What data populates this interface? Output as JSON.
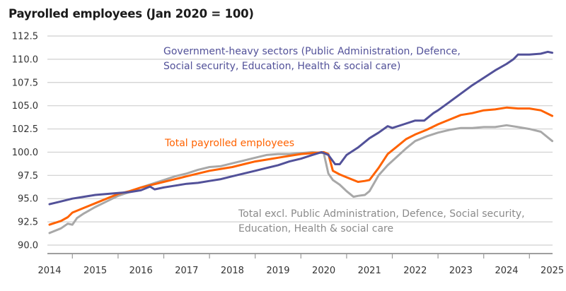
{
  "chart_data": {
    "type": "line",
    "title": "Payrolled employees (Jan 2020 = 100)",
    "xlabel": "",
    "ylabel": "",
    "ylim": [
      90.0,
      112.5
    ],
    "xlim": [
      2014.0,
      2025.0
    ],
    "yticks": [
      "90.0",
      "92.5",
      "95.0",
      "97.5",
      "100.0",
      "102.5",
      "105.0",
      "107.5",
      "110.0",
      "112.5"
    ],
    "xticks": [
      "2014",
      "2015",
      "2016",
      "2017",
      "2018",
      "2019",
      "2020",
      "2021",
      "2022",
      "2023",
      "2024",
      "2025"
    ],
    "grid": true,
    "legend": "inline annotations",
    "series": [
      {
        "name": "Government-heavy sectors (Public Administration, Defence, Social security, Education, Health & social care)",
        "color": "#525199",
        "x": [
          2014.0,
          2014.25,
          2014.5,
          2014.75,
          2015.0,
          2015.25,
          2015.5,
          2015.75,
          2016.0,
          2016.2,
          2016.3,
          2016.5,
          2016.75,
          2017.0,
          2017.25,
          2017.5,
          2017.75,
          2018.0,
          2018.25,
          2018.5,
          2018.75,
          2019.0,
          2019.25,
          2019.5,
          2019.75,
          2019.95,
          2020.1,
          2020.25,
          2020.35,
          2020.5,
          2020.75,
          2021.0,
          2021.2,
          2021.4,
          2021.5,
          2021.75,
          2022.0,
          2022.2,
          2022.4,
          2022.5,
          2022.75,
          2023.0,
          2023.25,
          2023.5,
          2023.75,
          2024.0,
          2024.15,
          2024.25,
          2024.5,
          2024.75,
          2024.9,
          2025.0
        ],
        "values": [
          94.4,
          94.7,
          95.0,
          95.2,
          95.4,
          95.5,
          95.6,
          95.7,
          95.9,
          96.3,
          96.0,
          96.2,
          96.4,
          96.6,
          96.7,
          96.9,
          97.1,
          97.4,
          97.7,
          98.0,
          98.3,
          98.6,
          99.0,
          99.3,
          99.7,
          100.0,
          99.7,
          98.7,
          98.7,
          99.7,
          100.5,
          101.5,
          102.1,
          102.8,
          102.6,
          103.0,
          103.4,
          103.4,
          104.2,
          104.5,
          105.4,
          106.3,
          107.2,
          108.0,
          108.8,
          109.5,
          110.0,
          110.5,
          110.5,
          110.6,
          110.8,
          110.7
        ]
      },
      {
        "name": "Total payrolled employees",
        "color": "#FF6200",
        "x": [
          2014.0,
          2014.25,
          2014.4,
          2014.5,
          2014.75,
          2015.0,
          2015.25,
          2015.5,
          2015.75,
          2016.0,
          2016.25,
          2016.5,
          2016.75,
          2017.0,
          2017.25,
          2017.5,
          2017.75,
          2018.0,
          2018.25,
          2018.5,
          2018.75,
          2019.0,
          2019.25,
          2019.5,
          2019.75,
          2020.0,
          2020.1,
          2020.2,
          2020.35,
          2020.5,
          2020.75,
          2020.9,
          2021.0,
          2021.2,
          2021.4,
          2021.6,
          2021.8,
          2022.0,
          2022.25,
          2022.5,
          2022.75,
          2023.0,
          2023.25,
          2023.5,
          2023.75,
          2024.0,
          2024.25,
          2024.5,
          2024.75,
          2025.0
        ],
        "values": [
          92.2,
          92.6,
          93.0,
          93.5,
          94.0,
          94.5,
          95.0,
          95.5,
          95.8,
          96.2,
          96.5,
          96.8,
          97.1,
          97.4,
          97.7,
          98.0,
          98.2,
          98.4,
          98.7,
          99.0,
          99.2,
          99.4,
          99.6,
          99.8,
          99.9,
          100.0,
          99.8,
          98.0,
          97.6,
          97.3,
          96.8,
          96.9,
          97.0,
          98.3,
          99.8,
          100.6,
          101.4,
          101.9,
          102.4,
          103.0,
          103.5,
          104.0,
          104.2,
          104.5,
          104.6,
          104.8,
          104.7,
          104.7,
          104.5,
          103.9
        ]
      },
      {
        "name": "Total excl. Public Administration, Defence, Social security, Education, Health & social care",
        "color": "#A8A8A8",
        "x": [
          2014.0,
          2014.25,
          2014.4,
          2014.5,
          2014.6,
          2014.75,
          2015.0,
          2015.25,
          2015.5,
          2015.75,
          2016.0,
          2016.25,
          2016.5,
          2016.75,
          2017.0,
          2017.25,
          2017.5,
          2017.75,
          2018.0,
          2018.25,
          2018.5,
          2018.75,
          2019.0,
          2019.25,
          2019.5,
          2019.75,
          2020.0,
          2020.1,
          2020.2,
          2020.35,
          2020.5,
          2020.65,
          2020.75,
          2020.9,
          2021.0,
          2021.2,
          2021.4,
          2021.6,
          2021.8,
          2022.0,
          2022.25,
          2022.5,
          2022.75,
          2023.0,
          2023.25,
          2023.5,
          2023.75,
          2024.0,
          2024.25,
          2024.5,
          2024.75,
          2025.0
        ],
        "values": [
          91.3,
          91.8,
          92.3,
          92.2,
          92.9,
          93.4,
          94.1,
          94.7,
          95.3,
          95.7,
          96.2,
          96.6,
          97.0,
          97.4,
          97.7,
          98.1,
          98.4,
          98.5,
          98.8,
          99.1,
          99.4,
          99.7,
          99.8,
          99.8,
          99.9,
          100.0,
          99.9,
          97.7,
          97.0,
          96.5,
          95.8,
          95.2,
          95.3,
          95.4,
          95.8,
          97.5,
          98.6,
          99.5,
          100.4,
          101.2,
          101.7,
          102.1,
          102.4,
          102.6,
          102.6,
          102.7,
          102.7,
          102.9,
          102.7,
          102.5,
          102.2,
          101.2
        ]
      }
    ],
    "annotations": [
      {
        "series": 0,
        "lines": [
          "Government-heavy sectors (Public Administration, Defence,",
          "Social security, Education, Health & social care)"
        ]
      },
      {
        "series": 1,
        "lines": [
          "Total payrolled employees"
        ]
      },
      {
        "series": 2,
        "lines": [
          "Total excl. Public Administration, Defence, Social security,",
          "Education, Health & social care"
        ]
      }
    ]
  }
}
